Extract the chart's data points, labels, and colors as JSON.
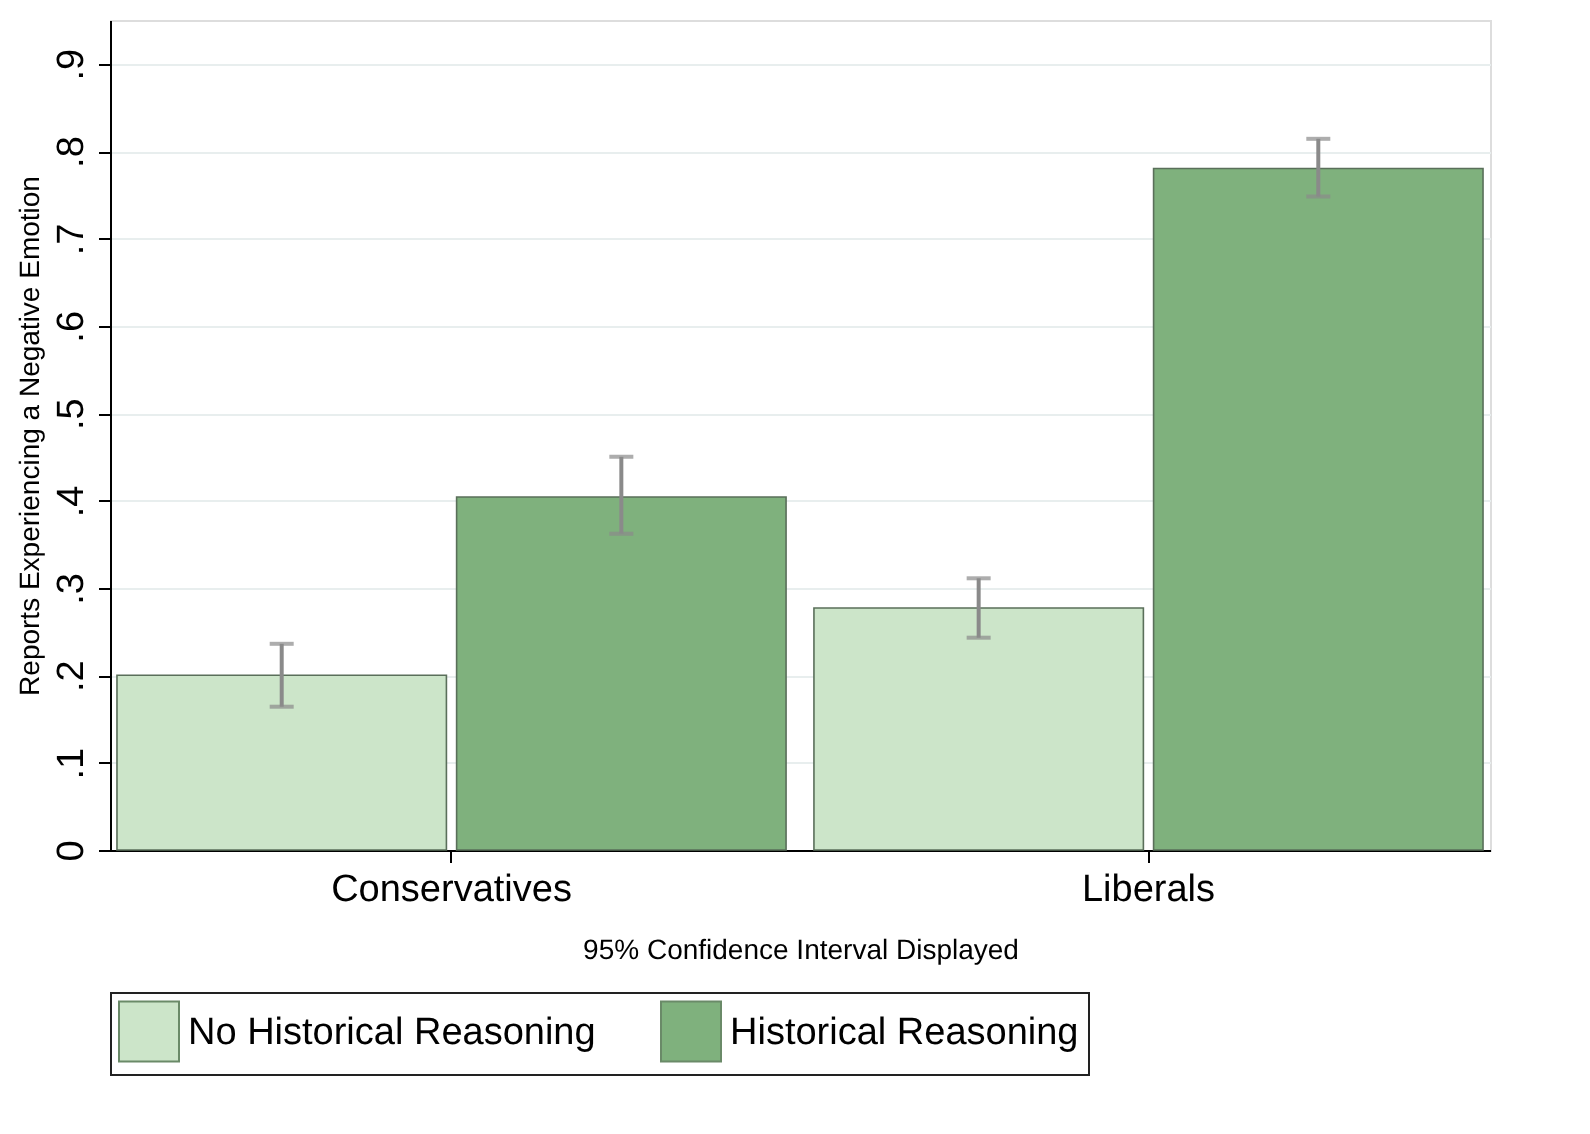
{
  "chart_data": {
    "type": "bar",
    "xlabel": "95% Confidence Interval Displayed",
    "ylabel": "Reports Experiencing a Negative Emotion",
    "categories": [
      "Conservatives",
      "Liberals"
    ],
    "series": [
      {
        "name": "No Historical Reasoning",
        "color": "#cce5c9",
        "values": [
          0.2,
          0.277
        ],
        "errors": [
          [
            0.164,
            0.236
          ],
          [
            0.243,
            0.311
          ]
        ]
      },
      {
        "name": "Historical Reasoning",
        "color": "#7fb17d",
        "values": [
          0.404,
          0.78
        ],
        "errors": [
          [
            0.362,
            0.45
          ],
          [
            0.748,
            0.814
          ]
        ]
      }
    ],
    "ylim": [
      0,
      0.95
    ],
    "yticks": [
      0,
      {
        "value": 0.1,
        "label": ".1"
      },
      {
        "value": 0.2,
        "label": ".2"
      },
      {
        "value": 0.3,
        "label": ".3"
      },
      {
        "value": 0.4,
        "label": ".4"
      },
      {
        "value": 0.5,
        "label": ".5"
      },
      {
        "value": 0.6,
        "label": ".6"
      },
      {
        "value": 0.7,
        "label": ".7"
      },
      {
        "value": 0.8,
        "label": ".8"
      },
      {
        "value": 0.9,
        "label": ".9"
      }
    ],
    "grid": "y",
    "legend": "bottom"
  }
}
